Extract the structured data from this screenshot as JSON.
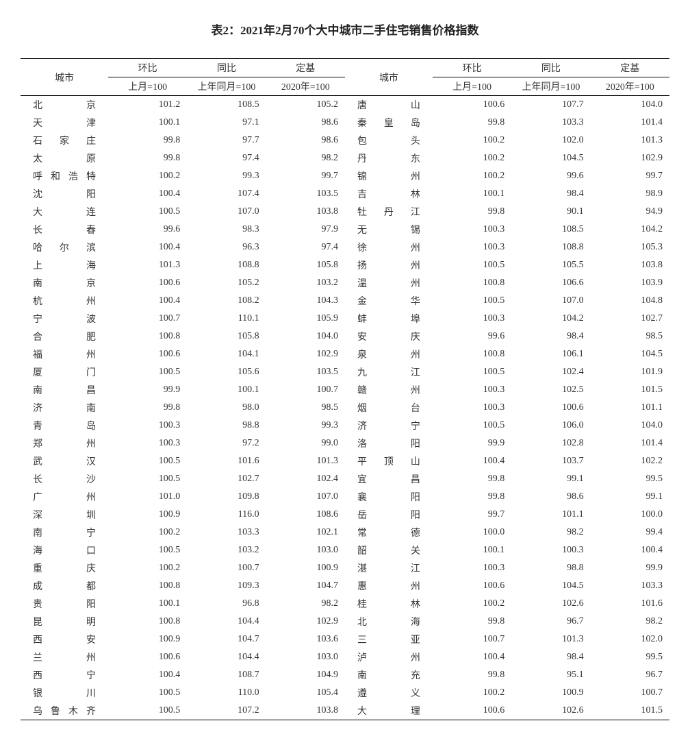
{
  "title": "表2：2021年2月70个大中城市二手住宅销售价格指数",
  "headers": {
    "city": "城市",
    "mom": "环比",
    "yoy": "同比",
    "base": "定基",
    "mom_sub": "上月=100",
    "yoy_sub": "上年同月=100",
    "base_sub": "2020年=100"
  },
  "colors": {
    "text": "#333333",
    "border": "#000000",
    "background": "#ffffff"
  },
  "font": {
    "title_size_pt": 17,
    "body_size_pt": 14,
    "family": "SimSun"
  },
  "rows_left": [
    {
      "city": "北京",
      "mom": "101.2",
      "yoy": "108.5",
      "base": "105.2"
    },
    {
      "city": "天津",
      "mom": "100.1",
      "yoy": "97.1",
      "base": "98.6"
    },
    {
      "city": "石家庄",
      "mom": "99.8",
      "yoy": "97.7",
      "base": "98.6"
    },
    {
      "city": "太原",
      "mom": "99.8",
      "yoy": "97.4",
      "base": "98.2"
    },
    {
      "city": "呼和浩特",
      "mom": "100.2",
      "yoy": "99.3",
      "base": "99.7"
    },
    {
      "city": "沈阳",
      "mom": "100.4",
      "yoy": "107.4",
      "base": "103.5"
    },
    {
      "city": "大连",
      "mom": "100.5",
      "yoy": "107.0",
      "base": "103.8"
    },
    {
      "city": "长春",
      "mom": "99.6",
      "yoy": "98.3",
      "base": "97.9"
    },
    {
      "city": "哈尔滨",
      "mom": "100.4",
      "yoy": "96.3",
      "base": "97.4"
    },
    {
      "city": "上海",
      "mom": "101.3",
      "yoy": "108.8",
      "base": "105.8"
    },
    {
      "city": "南京",
      "mom": "100.6",
      "yoy": "105.2",
      "base": "103.2"
    },
    {
      "city": "杭州",
      "mom": "100.4",
      "yoy": "108.2",
      "base": "104.3"
    },
    {
      "city": "宁波",
      "mom": "100.7",
      "yoy": "110.1",
      "base": "105.9"
    },
    {
      "city": "合肥",
      "mom": "100.8",
      "yoy": "105.8",
      "base": "104.0"
    },
    {
      "city": "福州",
      "mom": "100.6",
      "yoy": "104.1",
      "base": "102.9"
    },
    {
      "city": "厦门",
      "mom": "100.5",
      "yoy": "105.6",
      "base": "103.5"
    },
    {
      "city": "南昌",
      "mom": "99.9",
      "yoy": "100.1",
      "base": "100.7"
    },
    {
      "city": "济南",
      "mom": "99.8",
      "yoy": "98.0",
      "base": "98.5"
    },
    {
      "city": "青岛",
      "mom": "100.3",
      "yoy": "98.8",
      "base": "99.3"
    },
    {
      "city": "郑州",
      "mom": "100.3",
      "yoy": "97.2",
      "base": "99.0"
    },
    {
      "city": "武汉",
      "mom": "100.5",
      "yoy": "101.6",
      "base": "101.3"
    },
    {
      "city": "长沙",
      "mom": "100.5",
      "yoy": "102.7",
      "base": "102.4"
    },
    {
      "city": "广州",
      "mom": "101.0",
      "yoy": "109.8",
      "base": "107.0"
    },
    {
      "city": "深圳",
      "mom": "100.9",
      "yoy": "116.0",
      "base": "108.6"
    },
    {
      "city": "南宁",
      "mom": "100.2",
      "yoy": "103.3",
      "base": "102.1"
    },
    {
      "city": "海口",
      "mom": "100.5",
      "yoy": "103.2",
      "base": "103.0"
    },
    {
      "city": "重庆",
      "mom": "100.2",
      "yoy": "100.7",
      "base": "100.9"
    },
    {
      "city": "成都",
      "mom": "100.8",
      "yoy": "109.3",
      "base": "104.7"
    },
    {
      "city": "贵阳",
      "mom": "100.1",
      "yoy": "96.8",
      "base": "98.2"
    },
    {
      "city": "昆明",
      "mom": "100.8",
      "yoy": "104.4",
      "base": "102.9"
    },
    {
      "city": "西安",
      "mom": "100.9",
      "yoy": "104.7",
      "base": "103.6"
    },
    {
      "city": "兰州",
      "mom": "100.6",
      "yoy": "104.4",
      "base": "103.0"
    },
    {
      "city": "西宁",
      "mom": "100.4",
      "yoy": "108.7",
      "base": "104.9"
    },
    {
      "city": "银川",
      "mom": "100.5",
      "yoy": "110.0",
      "base": "105.4"
    },
    {
      "city": "乌鲁木齐",
      "mom": "100.5",
      "yoy": "107.2",
      "base": "103.8"
    }
  ],
  "rows_right": [
    {
      "city": "唐山",
      "mom": "100.6",
      "yoy": "107.7",
      "base": "104.0"
    },
    {
      "city": "秦皇岛",
      "mom": "99.8",
      "yoy": "103.3",
      "base": "101.4"
    },
    {
      "city": "包头",
      "mom": "100.2",
      "yoy": "102.0",
      "base": "101.3"
    },
    {
      "city": "丹东",
      "mom": "100.2",
      "yoy": "104.5",
      "base": "102.9"
    },
    {
      "city": "锦州",
      "mom": "100.2",
      "yoy": "99.6",
      "base": "99.7"
    },
    {
      "city": "吉林",
      "mom": "100.1",
      "yoy": "98.4",
      "base": "98.9"
    },
    {
      "city": "牡丹江",
      "mom": "99.8",
      "yoy": "90.1",
      "base": "94.9"
    },
    {
      "city": "无锡",
      "mom": "100.3",
      "yoy": "108.5",
      "base": "104.2"
    },
    {
      "city": "徐州",
      "mom": "100.3",
      "yoy": "108.8",
      "base": "105.3"
    },
    {
      "city": "扬州",
      "mom": "100.5",
      "yoy": "105.5",
      "base": "103.8"
    },
    {
      "city": "温州",
      "mom": "100.8",
      "yoy": "106.6",
      "base": "103.9"
    },
    {
      "city": "金华",
      "mom": "100.5",
      "yoy": "107.0",
      "base": "104.8"
    },
    {
      "city": "蚌埠",
      "mom": "100.3",
      "yoy": "104.2",
      "base": "102.7"
    },
    {
      "city": "安庆",
      "mom": "99.6",
      "yoy": "98.4",
      "base": "98.5"
    },
    {
      "city": "泉州",
      "mom": "100.8",
      "yoy": "106.1",
      "base": "104.5"
    },
    {
      "city": "九江",
      "mom": "100.5",
      "yoy": "102.4",
      "base": "101.9"
    },
    {
      "city": "赣州",
      "mom": "100.3",
      "yoy": "102.5",
      "base": "101.5"
    },
    {
      "city": "烟台",
      "mom": "100.3",
      "yoy": "100.6",
      "base": "101.1"
    },
    {
      "city": "济宁",
      "mom": "100.5",
      "yoy": "106.0",
      "base": "104.0"
    },
    {
      "city": "洛阳",
      "mom": "99.9",
      "yoy": "102.8",
      "base": "101.4"
    },
    {
      "city": "平顶山",
      "mom": "100.4",
      "yoy": "103.7",
      "base": "102.2"
    },
    {
      "city": "宜昌",
      "mom": "99.8",
      "yoy": "99.1",
      "base": "99.5"
    },
    {
      "city": "襄阳",
      "mom": "99.8",
      "yoy": "98.6",
      "base": "99.1"
    },
    {
      "city": "岳阳",
      "mom": "99.7",
      "yoy": "101.1",
      "base": "100.0"
    },
    {
      "city": "常德",
      "mom": "100.0",
      "yoy": "98.2",
      "base": "99.4"
    },
    {
      "city": "韶关",
      "mom": "100.1",
      "yoy": "100.3",
      "base": "100.4"
    },
    {
      "city": "湛江",
      "mom": "100.3",
      "yoy": "98.8",
      "base": "99.9"
    },
    {
      "city": "惠州",
      "mom": "100.6",
      "yoy": "104.5",
      "base": "103.3"
    },
    {
      "city": "桂林",
      "mom": "100.2",
      "yoy": "102.6",
      "base": "101.6"
    },
    {
      "city": "北海",
      "mom": "99.8",
      "yoy": "96.7",
      "base": "98.2"
    },
    {
      "city": "三亚",
      "mom": "100.7",
      "yoy": "101.3",
      "base": "102.0"
    },
    {
      "city": "泸州",
      "mom": "100.4",
      "yoy": "98.4",
      "base": "99.5"
    },
    {
      "city": "南充",
      "mom": "99.8",
      "yoy": "95.1",
      "base": "96.7"
    },
    {
      "city": "遵义",
      "mom": "100.2",
      "yoy": "100.9",
      "base": "100.7"
    },
    {
      "city": "大理",
      "mom": "100.6",
      "yoy": "102.6",
      "base": "101.5"
    }
  ]
}
